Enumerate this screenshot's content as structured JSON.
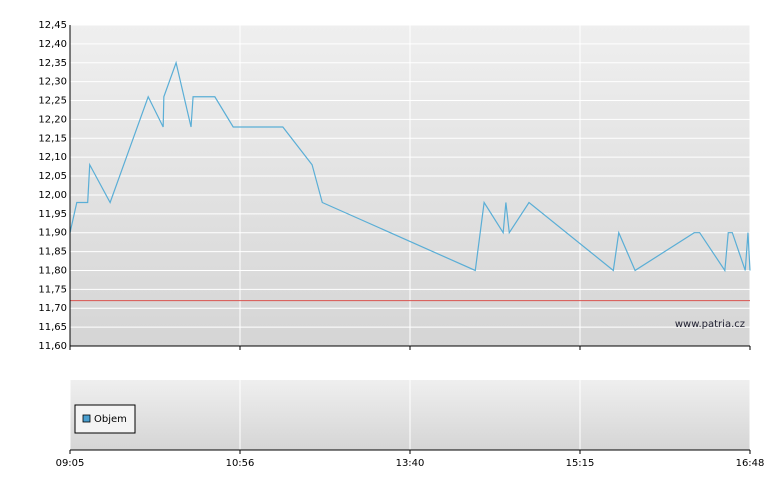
{
  "chart_data": {
    "type": "line",
    "x": [
      0,
      1.0,
      2.6,
      2.9,
      5.9,
      11.5,
      13.7,
      13.8,
      15.6,
      17.8,
      18.1,
      21.3,
      24.0,
      31.3,
      35.6,
      37.1,
      59.6,
      60.9,
      63.7,
      64.1,
      64.6,
      67.5,
      79.9,
      80.7,
      83.1,
      91.8,
      92.6,
      96.3,
      96.8,
      97.4,
      99.3,
      99.7,
      100
    ],
    "series": [
      {
        "color": "#5aaed6",
        "values": [
          11.9,
          11.98,
          11.98,
          12.08,
          11.98,
          12.26,
          12.18,
          12.26,
          12.35,
          12.18,
          12.26,
          12.26,
          12.18,
          12.18,
          12.08,
          11.98,
          11.8,
          11.98,
          11.9,
          11.98,
          11.9,
          11.98,
          11.8,
          11.9,
          11.8,
          11.9,
          11.9,
          11.8,
          11.9,
          11.9,
          11.8,
          11.9,
          11.8
        ]
      }
    ],
    "xlim": [
      0,
      100
    ],
    "xticks": [
      {
        "value": 0,
        "label": "09:05"
      },
      {
        "value": 25,
        "label": "10:56"
      },
      {
        "value": 50,
        "label": "13:40"
      },
      {
        "value": 75,
        "label": "15:15"
      },
      {
        "value": 100,
        "label": "16:48"
      }
    ],
    "ylim": [
      11.6,
      12.45
    ],
    "yticks": [
      {
        "value": 11.6,
        "label": "11,60"
      },
      {
        "value": 11.65,
        "label": "11,65"
      },
      {
        "value": 11.7,
        "label": "11,70"
      },
      {
        "value": 11.75,
        "label": "11,75"
      },
      {
        "value": 11.8,
        "label": "11,80"
      },
      {
        "value": 11.85,
        "label": "11,85"
      },
      {
        "value": 11.9,
        "label": "11,90"
      },
      {
        "value": 11.95,
        "label": "11,95"
      },
      {
        "value": 12.0,
        "label": "12,00"
      },
      {
        "value": 12.05,
        "label": "12,05"
      },
      {
        "value": 12.1,
        "label": "12,10"
      },
      {
        "value": 12.15,
        "label": "12,15"
      },
      {
        "value": 12.2,
        "label": "12,20"
      },
      {
        "value": 12.25,
        "label": "12,25"
      },
      {
        "value": 12.3,
        "label": "12,30"
      },
      {
        "value": 12.35,
        "label": "12,35"
      },
      {
        "value": 12.4,
        "label": "12,40"
      },
      {
        "value": 12.45,
        "label": "12,45"
      }
    ],
    "grid": true,
    "reference_line": {
      "value": 11.72,
      "color": "#d9534f"
    },
    "watermark": "www.patria.cz",
    "volume_legend": {
      "name": "Objem",
      "color": "#4a9fd0"
    }
  }
}
